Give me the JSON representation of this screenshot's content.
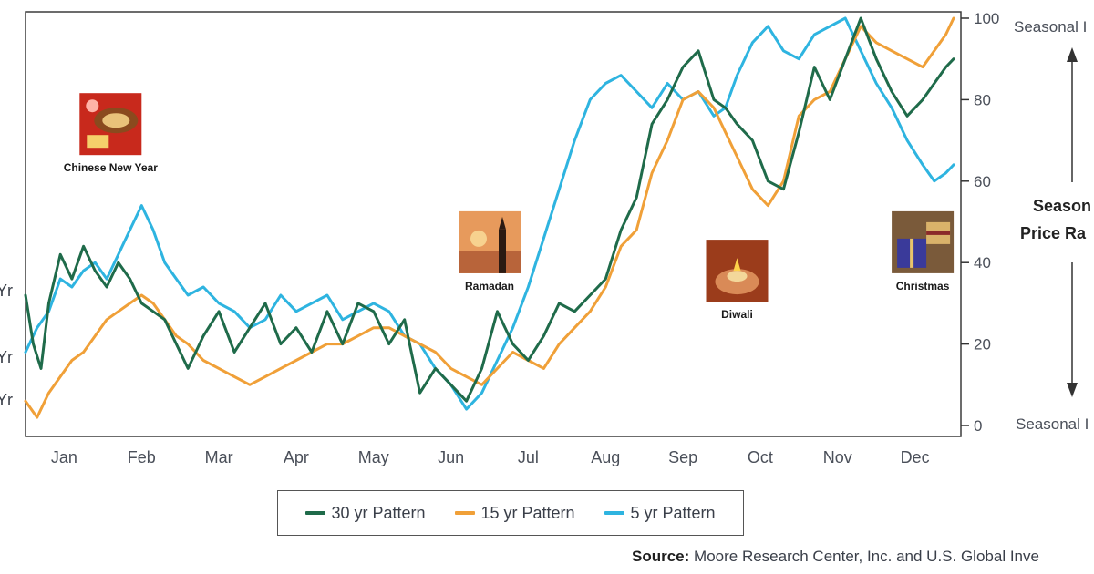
{
  "chart_data": {
    "type": "line",
    "title": "",
    "xlabel": "",
    "ylabel": "",
    "ylim": [
      0,
      100
    ],
    "yticks": [
      0,
      20,
      40,
      60,
      80,
      100
    ],
    "months": [
      "Jan",
      "Feb",
      "Mar",
      "Apr",
      "May",
      "Jun",
      "Jul",
      "Aug",
      "Sep",
      "Oct",
      "Nov",
      "Dec"
    ],
    "x_unit": "month position (0 = start of Jan, 12 = end of Dec)",
    "series": [
      {
        "name": "30 yr Pattern",
        "color": "#1f6b4a",
        "edge_label": "Yr",
        "x": [
          0,
          0.1,
          0.2,
          0.3,
          0.45,
          0.6,
          0.75,
          0.9,
          1.05,
          1.2,
          1.35,
          1.5,
          1.65,
          1.8,
          1.95,
          2.1,
          2.3,
          2.5,
          2.7,
          2.9,
          3.1,
          3.3,
          3.5,
          3.7,
          3.9,
          4.1,
          4.3,
          4.5,
          4.7,
          4.9,
          5.1,
          5.3,
          5.5,
          5.7,
          5.9,
          6.1,
          6.3,
          6.5,
          6.7,
          6.9,
          7.1,
          7.3,
          7.5,
          7.7,
          7.9,
          8.1,
          8.3,
          8.5,
          8.7,
          8.9,
          9.05,
          9.2,
          9.4,
          9.6,
          9.8,
          10,
          10.2,
          10.4,
          10.6,
          10.8,
          11,
          11.2,
          11.4,
          11.6,
          11.75,
          11.9,
          12
        ],
        "values": [
          32,
          20,
          14,
          30,
          42,
          36,
          44,
          38,
          34,
          40,
          36,
          30,
          28,
          26,
          20,
          14,
          22,
          28,
          18,
          24,
          30,
          20,
          24,
          18,
          28,
          20,
          30,
          28,
          20,
          26,
          8,
          14,
          10,
          6,
          14,
          28,
          20,
          16,
          22,
          30,
          28,
          32,
          36,
          48,
          56,
          74,
          80,
          88,
          92,
          80,
          78,
          74,
          70,
          60,
          58,
          72,
          88,
          80,
          90,
          100,
          90,
          82,
          76,
          80,
          84,
          88,
          90
        ]
      },
      {
        "name": "15 yr Pattern",
        "color": "#f0a038",
        "edge_label": "Yr",
        "x": [
          0,
          0.15,
          0.3,
          0.45,
          0.6,
          0.75,
          0.9,
          1.05,
          1.2,
          1.35,
          1.5,
          1.65,
          1.8,
          1.95,
          2.1,
          2.3,
          2.5,
          2.7,
          2.9,
          3.1,
          3.3,
          3.5,
          3.7,
          3.9,
          4.1,
          4.3,
          4.5,
          4.7,
          4.9,
          5.1,
          5.3,
          5.5,
          5.7,
          5.9,
          6.1,
          6.3,
          6.5,
          6.7,
          6.9,
          7.1,
          7.3,
          7.5,
          7.7,
          7.9,
          8.1,
          8.3,
          8.5,
          8.7,
          8.9,
          9.05,
          9.2,
          9.4,
          9.6,
          9.8,
          10,
          10.2,
          10.4,
          10.6,
          10.8,
          11,
          11.2,
          11.4,
          11.6,
          11.75,
          11.9,
          12
        ],
        "values": [
          6,
          2,
          8,
          12,
          16,
          18,
          22,
          26,
          28,
          30,
          32,
          30,
          26,
          22,
          20,
          16,
          14,
          12,
          10,
          12,
          14,
          16,
          18,
          20,
          20,
          22,
          24,
          24,
          22,
          20,
          18,
          14,
          12,
          10,
          14,
          18,
          16,
          14,
          20,
          24,
          28,
          34,
          44,
          48,
          62,
          70,
          80,
          82,
          78,
          72,
          66,
          58,
          54,
          60,
          76,
          80,
          82,
          90,
          98,
          94,
          92,
          90,
          88,
          92,
          96,
          100
        ]
      },
      {
        "name": "5 yr Pattern",
        "color": "#2eb4e0",
        "edge_label": "Yr",
        "x": [
          0,
          0.15,
          0.3,
          0.45,
          0.6,
          0.75,
          0.9,
          1.05,
          1.2,
          1.35,
          1.5,
          1.65,
          1.8,
          1.95,
          2.1,
          2.3,
          2.5,
          2.7,
          2.9,
          3.1,
          3.3,
          3.5,
          3.7,
          3.9,
          4.1,
          4.3,
          4.5,
          4.7,
          4.9,
          5.1,
          5.3,
          5.5,
          5.7,
          5.9,
          6.1,
          6.3,
          6.5,
          6.7,
          6.9,
          7.1,
          7.3,
          7.5,
          7.7,
          7.9,
          8.1,
          8.3,
          8.5,
          8.7,
          8.9,
          9.05,
          9.2,
          9.4,
          9.6,
          9.8,
          10,
          10.2,
          10.4,
          10.6,
          10.8,
          11,
          11.2,
          11.4,
          11.6,
          11.75,
          11.9,
          12
        ],
        "values": [
          18,
          24,
          28,
          36,
          34,
          38,
          40,
          36,
          42,
          48,
          54,
          48,
          40,
          36,
          32,
          34,
          30,
          28,
          24,
          26,
          32,
          28,
          30,
          32,
          26,
          28,
          30,
          28,
          22,
          20,
          14,
          10,
          4,
          8,
          16,
          24,
          34,
          46,
          58,
          70,
          80,
          84,
          86,
          82,
          78,
          84,
          80,
          82,
          76,
          78,
          86,
          94,
          98,
          92,
          90,
          96,
          98,
          100,
          92,
          84,
          78,
          70,
          64,
          60,
          62,
          64
        ]
      }
    ],
    "annotations": [
      {
        "label": "Chinese New Year",
        "month_pos": 1.1,
        "level": 74,
        "image": "festive-red-gift"
      },
      {
        "label": "Ramadan",
        "month_pos": 6.0,
        "level": 45,
        "image": "mosque-minaret-sunset"
      },
      {
        "label": "Diwali",
        "month_pos": 9.2,
        "level": 38,
        "image": "oil-lamp-hands"
      },
      {
        "label": "Christmas",
        "month_pos": 11.6,
        "level": 45,
        "image": "wrapped-gifts"
      }
    ],
    "right_axis": {
      "top_label": "Seasonal I",
      "bottom_label": "Seasonal I",
      "middle_label_line1": "Season",
      "middle_label_line2": "Price Ra"
    },
    "legend_position": "bottom-center",
    "grid": false
  },
  "source": {
    "prefix": "Source:",
    "text": "Moore Research Center, Inc. and U.S. Global Inve"
  }
}
